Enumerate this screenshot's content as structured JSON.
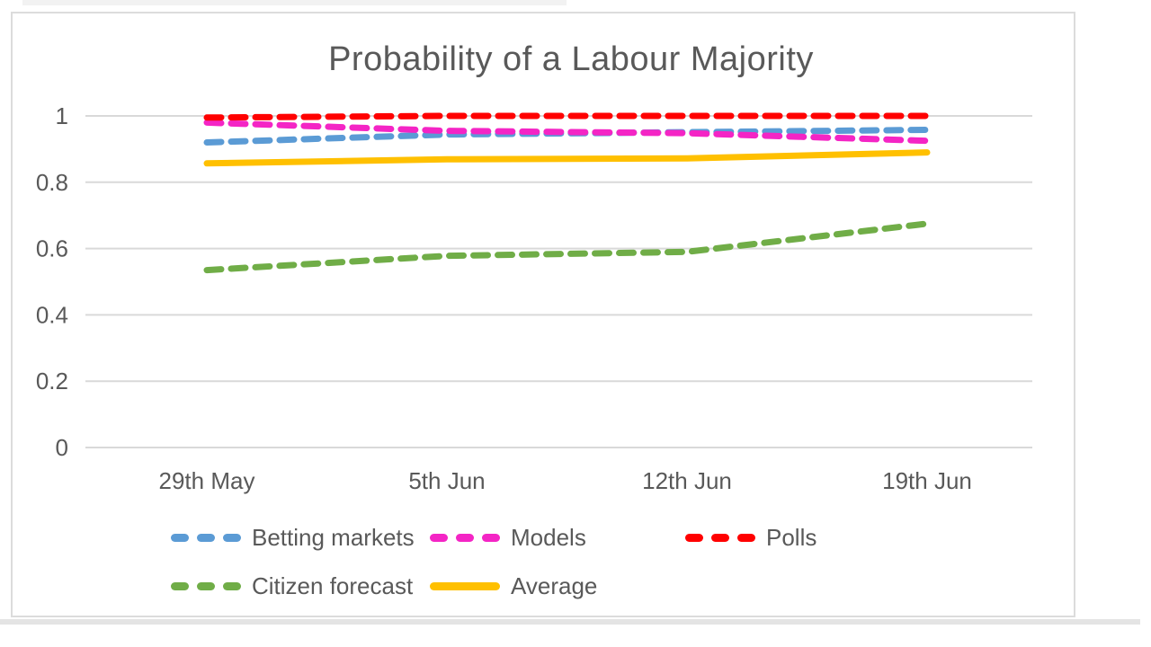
{
  "chart_data": {
    "type": "line",
    "title": "Probability of a Labour Majority",
    "categories": [
      "29th May",
      "5th Jun",
      "12th Jun",
      "19th Jun"
    ],
    "series": [
      {
        "name": "Betting markets",
        "color": "#5B9BD5",
        "dashed": true,
        "values": [
          0.92,
          0.944,
          0.951,
          0.958
        ]
      },
      {
        "name": "Models",
        "color": "#F425C5",
        "dashed": true,
        "values": [
          0.98,
          0.955,
          0.948,
          0.925
        ]
      },
      {
        "name": "Polls",
        "color": "#FF0000",
        "dashed": true,
        "values": [
          0.995,
          1.0,
          1.0,
          1.0
        ]
      },
      {
        "name": "Citizen forecast",
        "color": "#70AD47",
        "dashed": true,
        "values": [
          0.535,
          0.578,
          0.59,
          0.675
        ]
      },
      {
        "name": "Average",
        "color": "#FFC000",
        "dashed": false,
        "values": [
          0.857,
          0.869,
          0.872,
          0.89
        ]
      }
    ],
    "ylim": [
      0,
      1
    ],
    "yticks": [
      0,
      0.2,
      0.4,
      0.6,
      0.8,
      1
    ],
    "ytick_labels": [
      "0",
      "0.2",
      "0.4",
      "0.6",
      "0.8",
      "1"
    ],
    "grid": true,
    "legend_position": "bottom",
    "legend_rows": [
      [
        "Betting markets",
        "Models",
        "Polls"
      ],
      [
        "Citizen forecast",
        "Average"
      ]
    ],
    "colors": {
      "text": "#595959",
      "gridline": "#D9D9D9",
      "frame_border": "#DCDCDC"
    }
  }
}
